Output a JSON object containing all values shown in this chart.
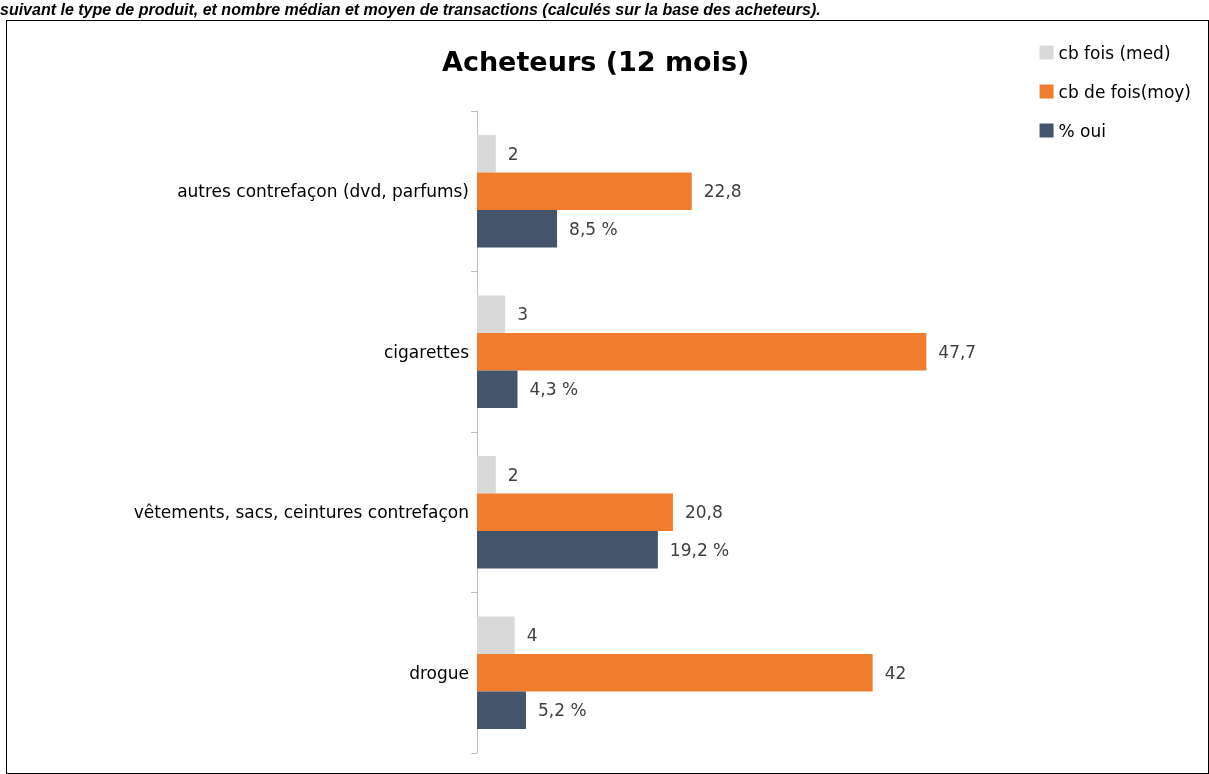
{
  "chart_data": {
    "type": "bar",
    "orientation": "horizontal",
    "title": "Acheteurs (12 mois)",
    "annotations": [
      "suivant le type de produit, et nombre médian et moyen de transactions (calculés sur la base des acheteurs)."
    ],
    "categories": [
      "autres contrefaçon (dvd, parfums)",
      "cigarettes",
      "vêtements, sacs, ceintures contrefaçon",
      "drogue"
    ],
    "series": [
      {
        "name": "cb fois (med)",
        "color": "#d9d9d9",
        "values": [
          2,
          3,
          2,
          4
        ],
        "value_labels": [
          "2",
          "3",
          "2",
          "4"
        ]
      },
      {
        "name": "cb de fois(moy)",
        "color": "#f07d2e",
        "values": [
          22.8,
          47.7,
          20.8,
          42
        ],
        "value_labels": [
          "22,8",
          "47,7",
          "20,8",
          "42"
        ]
      },
      {
        "name": "% oui",
        "color": "#44546a",
        "values": [
          8.5,
          4.3,
          19.2,
          5.2
        ],
        "value_labels": [
          "8,5 %",
          "4,3 %",
          "19,2 %",
          "5,2 %"
        ]
      }
    ],
    "legend": "top right"
  }
}
